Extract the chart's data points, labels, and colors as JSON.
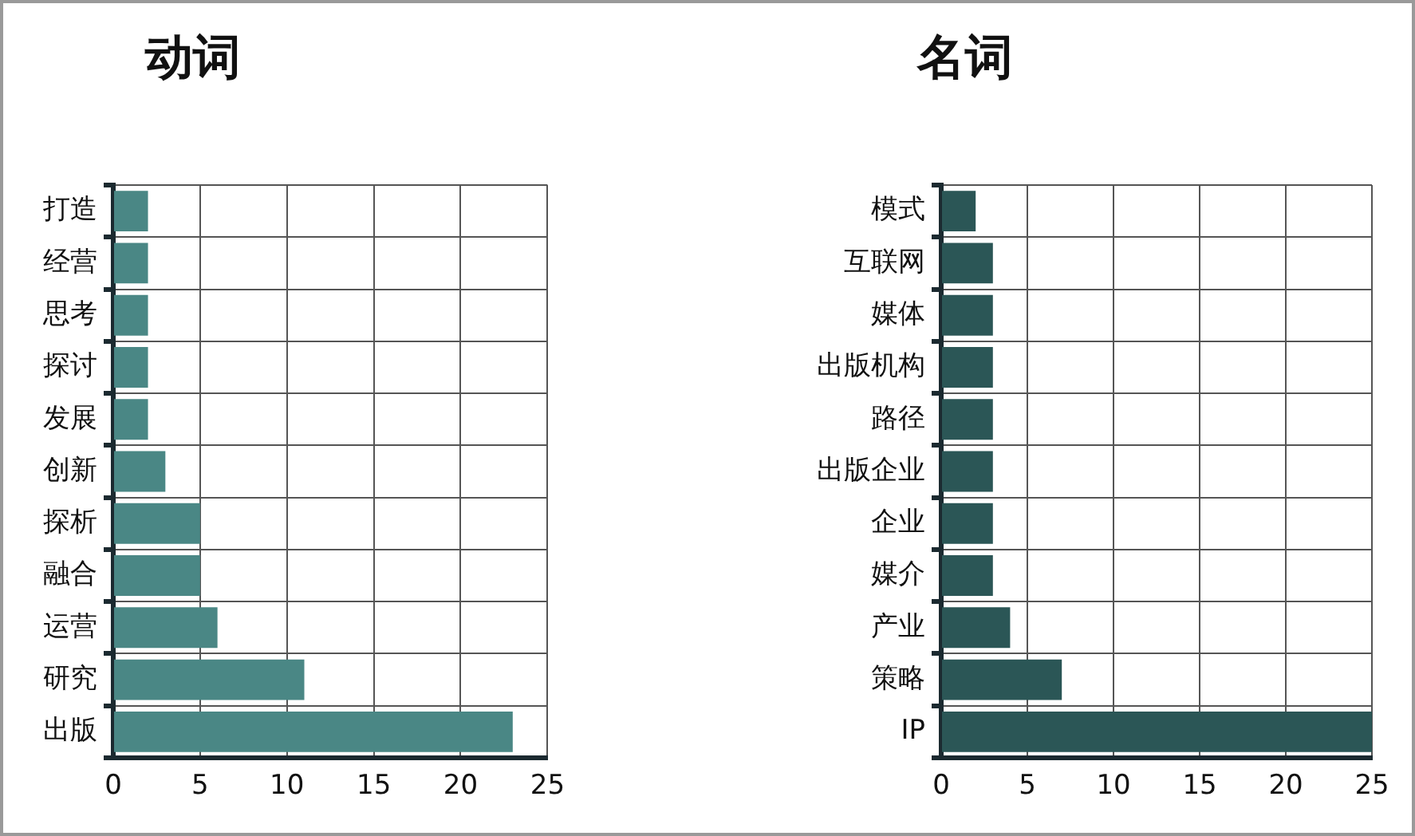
{
  "chart_data": [
    {
      "type": "bar",
      "orientation": "horizontal",
      "title": "动词",
      "categories": [
        "打造",
        "经营",
        "思考",
        "探讨",
        "发展",
        "创新",
        "探析",
        "融合",
        "运营",
        "研究",
        "出版"
      ],
      "values": [
        2,
        2,
        2,
        2,
        2,
        3,
        5,
        5,
        6,
        11,
        23
      ],
      "color": "#4a8785",
      "xlim": [
        0,
        25
      ],
      "xticks": [
        0,
        5,
        10,
        15,
        20,
        25
      ],
      "grid": true
    },
    {
      "type": "bar",
      "orientation": "horizontal",
      "title": "名词",
      "categories": [
        "模式",
        "互联网",
        "媒体",
        "出版机构",
        "路径",
        "出版企业",
        "企业",
        "媒介",
        "产业",
        "策略",
        "IP"
      ],
      "values": [
        2,
        3,
        3,
        3,
        3,
        3,
        3,
        3,
        4,
        7,
        25
      ],
      "color": "#2b5656",
      "xlim": [
        0,
        25
      ],
      "xticks": [
        0,
        5,
        10,
        15,
        20,
        25
      ],
      "grid": true
    }
  ]
}
